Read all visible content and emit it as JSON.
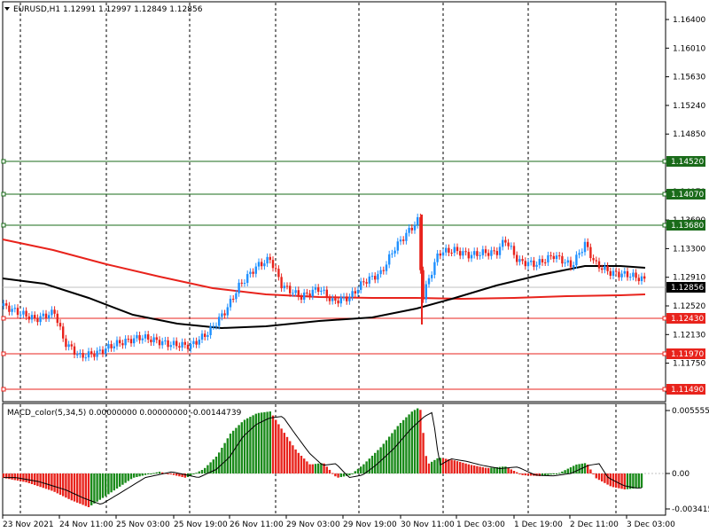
{
  "main_chart": {
    "symbol_info": "EURUSD,H1  1.12991 1.12997 1.12849 1.12856",
    "menu_icon": "triangle-down-icon",
    "price_axis": {
      "ticks": [
        "1.16400",
        "1.16010",
        "1.15630",
        "1.15240",
        "1.14850",
        "1.14460",
        "1.14070",
        "1.13690",
        "1.13300",
        "1.12910",
        "1.12520",
        "1.12130",
        "1.11750",
        "1.11360"
      ],
      "min": 1.1136,
      "max": 1.166
    },
    "levels": [
      {
        "label": "1.14520",
        "price": 1.1452,
        "color": "#1a6b1a"
      },
      {
        "label": "1.14070",
        "price": 1.1407,
        "color": "#1a6b1a"
      },
      {
        "label": "1.13680",
        "price": 1.1368,
        "color": "#1a6b1a"
      },
      {
        "label": "1.12430",
        "price": 1.1243,
        "color": "#e8231c"
      },
      {
        "label": "1.11970",
        "price": 1.1197,
        "color": "#e8231c"
      },
      {
        "label": "1.11490",
        "price": 1.1149,
        "color": "#e8231c"
      }
    ],
    "current_price": {
      "label": "1.12856",
      "value": 1.12856
    }
  },
  "indicator": {
    "title": "MACD_color(5,34,5) 0.00000000 0.00000000 -0.00144739",
    "ticks": [
      "0.0055552",
      "0.00",
      "-0.003415"
    ]
  },
  "time_axis": {
    "labels": [
      "23 Nov 2021",
      "24 Nov 11:00",
      "25 Nov 03:00",
      "25 Nov 19:00",
      "26 Nov 11:00",
      "29 Nov 03:00",
      "29 Nov 19:00",
      "30 Nov 11:00",
      "1 Dec 03:00",
      "1 Dec 19:00",
      "2 Dec 11:00",
      "3 Dec 03:00"
    ]
  },
  "colors": {
    "bull": "#1e90ff",
    "bear": "#e8231c",
    "ma_red": "#e8231c",
    "ma_black": "#000000",
    "macd_up": "#1a8a1a",
    "macd_down": "#e8231c",
    "grid": "#000000"
  }
}
